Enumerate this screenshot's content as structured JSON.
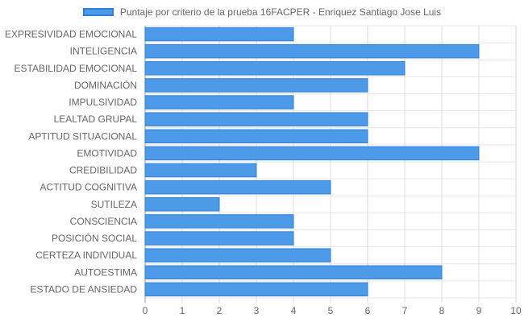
{
  "chart_data": {
    "type": "bar",
    "orientation": "horizontal",
    "categories": [
      "EXPRESIVIDAD EMOCIONAL",
      "INTELIGENCIA",
      "ESTABILIDAD EMOCIONAL",
      "DOMINACIÓN",
      "IMPULSIVIDAD",
      "LEALTAD GRUPAL",
      "APTITUD SITUACIONAL",
      "EMOTIVIDAD",
      "CREDIBILIDAD",
      "ACTITUD COGNITIVA",
      "SUTILEZA",
      "CONSCIENCIA",
      "POSICIÓN SOCIAL",
      "CERTEZA INDIVIDUAL",
      "AUTOESTIMA",
      "ESTADO DE ANSIEDAD"
    ],
    "series": [
      {
        "name": "Puntaje por criterio de la prueba 16FACPER - Enriquez Santiago Jose Luis",
        "values": [
          4,
          9,
          7,
          6,
          4,
          6,
          6,
          9,
          3,
          5,
          2,
          4,
          4,
          5,
          8,
          6
        ],
        "color": "#4d9ae8",
        "border_color": "#2f7fd6"
      }
    ],
    "xlim": [
      0,
      10
    ],
    "xticks": [
      "0",
      "1",
      "2",
      "3",
      "4",
      "5",
      "6",
      "7",
      "8",
      "9",
      "10"
    ],
    "grid": true,
    "legend": "top-center"
  }
}
